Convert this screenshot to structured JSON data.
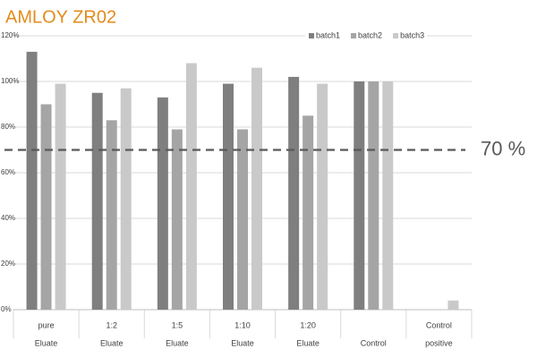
{
  "chart_data": {
    "type": "bar",
    "title": "AMLOY ZR02",
    "categories": [
      [
        "pure",
        "Eluate"
      ],
      [
        "1:2",
        "Eluate"
      ],
      [
        "1:5",
        "Eluate"
      ],
      [
        "1:10",
        "Eluate"
      ],
      [
        "1:20",
        "Eluate"
      ],
      [
        "Control"
      ],
      [
        "Control",
        "positive"
      ]
    ],
    "series": [
      {
        "name": "batch1",
        "color": "#7f7f7f",
        "values": [
          113,
          95,
          93,
          99,
          102,
          100,
          0
        ]
      },
      {
        "name": "batch2",
        "color": "#a5a5a5",
        "values": [
          90,
          83,
          79,
          79,
          85,
          100,
          0
        ]
      },
      {
        "name": "batch3",
        "color": "#c9c9c9",
        "values": [
          99,
          97,
          108,
          106,
          99,
          100,
          4
        ]
      }
    ],
    "ylim": [
      0,
      120
    ],
    "yticks": [
      {
        "value": 0,
        "label": "0%"
      },
      {
        "value": 20,
        "label": "20%"
      },
      {
        "value": 40,
        "label": "40%"
      },
      {
        "value": 60,
        "label": "60%"
      },
      {
        "value": 80,
        "label": "80%"
      },
      {
        "value": 100,
        "label": "100%"
      },
      {
        "value": 120,
        "label": "120%"
      }
    ],
    "grid": true,
    "legend": "top-right",
    "reference_line": {
      "value": 70,
      "label": "70 %"
    }
  }
}
